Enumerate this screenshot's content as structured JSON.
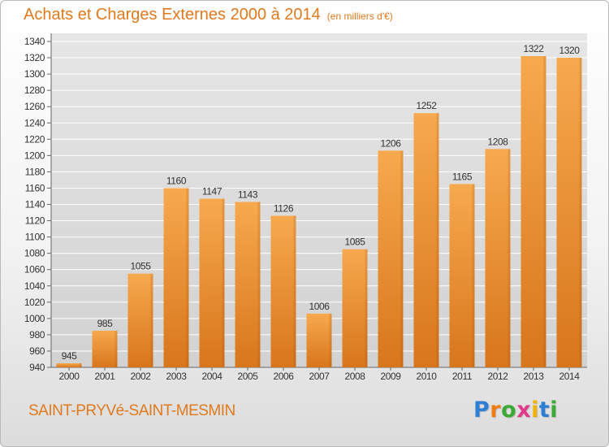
{
  "header": {
    "title": "Achats et Charges Externes 2000 à 2014",
    "unit": "(en milliers d'€)"
  },
  "footer": {
    "commune": "SAINT-PRYVé-SAINT-MESMIN",
    "logo": [
      "P",
      "r",
      "o",
      "x",
      "i",
      "t",
      "i"
    ],
    "logo_colors": [
      "#2e7fd4",
      "#f07c14",
      "#3aa935",
      "#e03b8b",
      "#f0b400",
      "#2e7fd4",
      "#3aa935"
    ]
  },
  "colors": {
    "accent": "#e07a1e",
    "bar_top": "#f7a94e",
    "bar_bottom": "#d8761c",
    "plot_background": "#dcdcdc",
    "grid": "#ffffff"
  },
  "chart_data": {
    "type": "bar",
    "title": "Achats et Charges Externes 2000 à 2014",
    "subtitle": "(en milliers d'€)",
    "categories": [
      "2000",
      "2001",
      "2002",
      "2003",
      "2004",
      "2005",
      "2006",
      "2007",
      "2008",
      "2009",
      "2010",
      "2011",
      "2012",
      "2013",
      "2014"
    ],
    "values": [
      945,
      985,
      1055,
      1160,
      1147,
      1143,
      1126,
      1006,
      1085,
      1206,
      1252,
      1165,
      1208,
      1322,
      1320
    ],
    "data_labels": [
      "945",
      "985",
      "1055",
      "1160",
      "1147",
      "1143",
      "1126",
      "1006",
      "1085",
      "1206",
      "1252",
      "1165",
      "1208",
      "1322",
      "1320"
    ],
    "ylim": [
      940,
      1340
    ],
    "yticks": [
      940,
      960,
      980,
      1000,
      1020,
      1040,
      1060,
      1080,
      1100,
      1120,
      1140,
      1160,
      1180,
      1200,
      1220,
      1240,
      1260,
      1280,
      1300,
      1320,
      1340
    ],
    "xlabel": "",
    "ylabel": "",
    "grid": true,
    "legend": "none"
  }
}
